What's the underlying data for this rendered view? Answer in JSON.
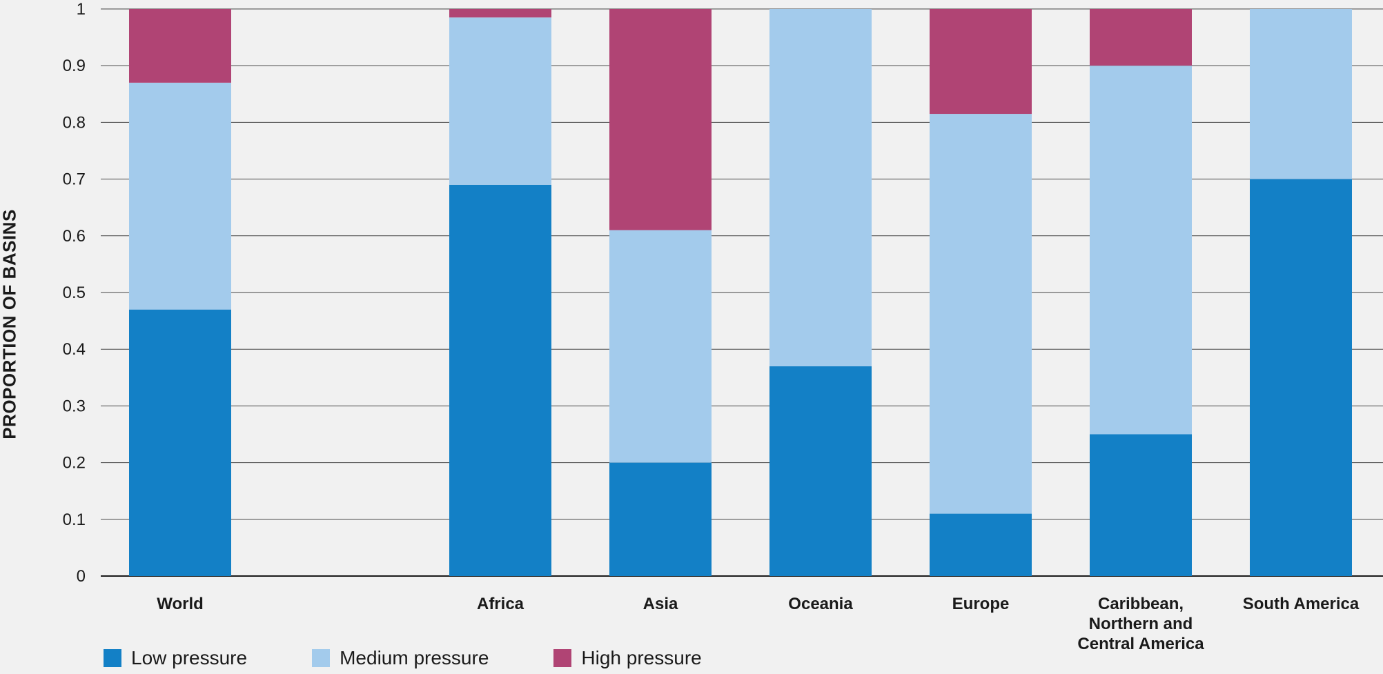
{
  "chart_data": {
    "type": "bar",
    "stacked": true,
    "ylabel": "PROPORTION OF BASINS",
    "xlabel": "",
    "ylim": [
      0,
      1
    ],
    "yticks": [
      "0",
      "0.1",
      "0.2",
      "0.3",
      "0.4",
      "0.5",
      "0.6",
      "0.7",
      "0.8",
      "0.9",
      "1"
    ],
    "grid": true,
    "legend_position": "bottom-left",
    "categories": [
      [
        "World"
      ],
      [],
      [
        "Africa"
      ],
      [
        "Asia"
      ],
      [
        "Oceania"
      ],
      [
        "Europe"
      ],
      [
        "Caribbean,",
        "Northern and",
        "Central America"
      ],
      [
        "South America"
      ]
    ],
    "series": [
      {
        "name": "Low pressure",
        "color": "#1380c6",
        "values": [
          0.47,
          null,
          0.69,
          0.2,
          0.37,
          0.11,
          0.25,
          0.7
        ]
      },
      {
        "name": "Medium pressure",
        "color": "#a3cbec",
        "values": [
          0.4,
          null,
          0.295,
          0.41,
          0.63,
          0.705,
          0.65,
          0.3
        ]
      },
      {
        "name": "High pressure",
        "color": "#b04474",
        "values": [
          0.13,
          null,
          0.015,
          0.39,
          0.0,
          0.185,
          0.1,
          0.0
        ]
      }
    ]
  }
}
